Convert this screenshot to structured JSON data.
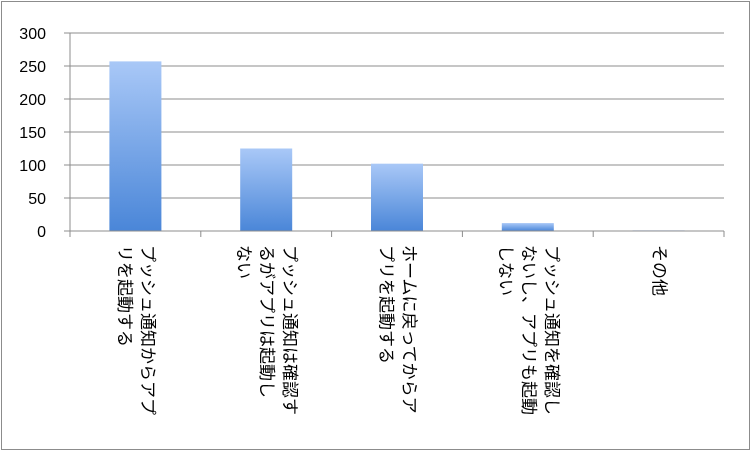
{
  "chart_data": {
    "type": "bar",
    "categories": [
      [
        "プッシュ通知からアプ",
        "リを起動する"
      ],
      [
        "プッシュ通知は確認す",
        "るがアプリは起動し",
        "ない"
      ],
      [
        "ホームに戻ってからア",
        "プリを起動する"
      ],
      [
        "プッシュ通知を確認し",
        "ないし、アプリも起動",
        "しない"
      ],
      [
        "その他"
      ]
    ],
    "values": [
      257,
      125,
      102,
      12,
      1
    ],
    "ylim": [
      0,
      300
    ],
    "yticks": [
      0,
      50,
      100,
      150,
      200,
      250,
      300
    ],
    "grid": true,
    "bar_color_top": "#a9c8f7",
    "bar_color_bottom": "#4a86d8",
    "grid_color": "#8c8c8c"
  }
}
